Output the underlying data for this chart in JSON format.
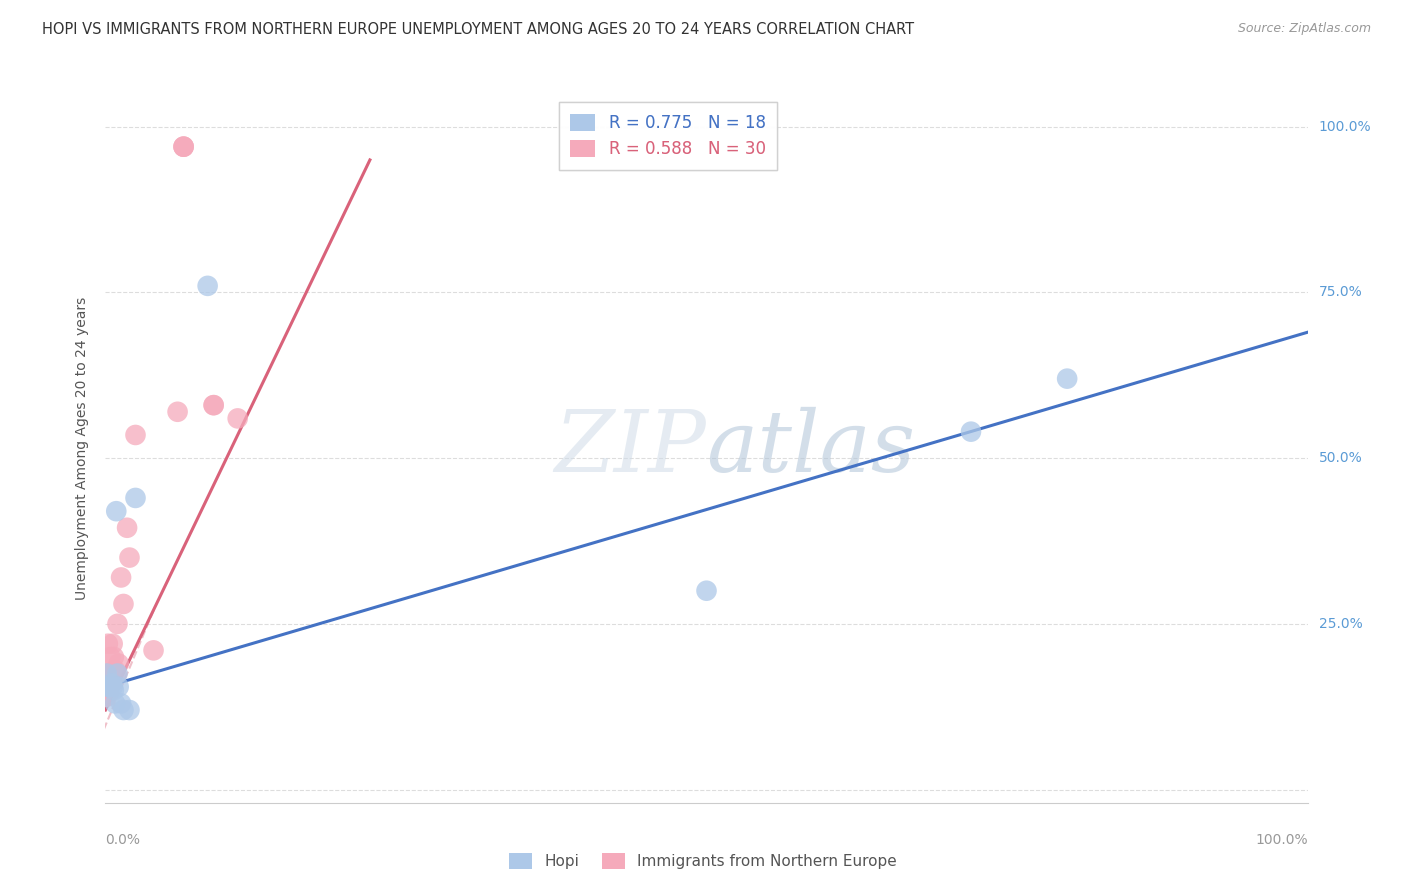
{
  "title": "HOPI VS IMMIGRANTS FROM NORTHERN EUROPE UNEMPLOYMENT AMONG AGES 20 TO 24 YEARS CORRELATION CHART",
  "source": "Source: ZipAtlas.com",
  "ylabel": "Unemployment Among Ages 20 to 24 years",
  "hopi_R": 0.775,
  "hopi_N": 18,
  "imm_R": 0.588,
  "imm_N": 30,
  "hopi_scatter_color": "#adc8e8",
  "imm_scatter_color": "#f5aabb",
  "hopi_line_color": "#4472c4",
  "imm_line_color": "#d9627a",
  "watermark_zip": "ZIP",
  "watermark_atlas": "atlas",
  "hopi_x": [
    0.001,
    0.002,
    0.004,
    0.005,
    0.006,
    0.007,
    0.008,
    0.009,
    0.01,
    0.011,
    0.013,
    0.015,
    0.02,
    0.025,
    0.085,
    0.5,
    0.72,
    0.8
  ],
  "hopi_y": [
    0.175,
    0.155,
    0.155,
    0.16,
    0.155,
    0.15,
    0.13,
    0.42,
    0.175,
    0.155,
    0.13,
    0.12,
    0.12,
    0.44,
    0.76,
    0.3,
    0.54,
    0.62
  ],
  "imm_x": [
    0.0,
    0.0,
    0.0,
    0.001,
    0.001,
    0.002,
    0.003,
    0.004,
    0.004,
    0.005,
    0.005,
    0.006,
    0.007,
    0.008,
    0.009,
    0.01,
    0.011,
    0.013,
    0.015,
    0.018,
    0.02,
    0.025,
    0.04,
    0.06,
    0.065,
    0.065,
    0.065,
    0.09,
    0.09,
    0.11
  ],
  "imm_y": [
    0.14,
    0.145,
    0.155,
    0.14,
    0.175,
    0.22,
    0.15,
    0.2,
    0.175,
    0.16,
    0.175,
    0.22,
    0.2,
    0.18,
    0.175,
    0.25,
    0.19,
    0.32,
    0.28,
    0.395,
    0.35,
    0.535,
    0.21,
    0.57,
    0.97,
    0.97,
    0.97,
    0.58,
    0.58,
    0.56
  ],
  "hopi_trend_x0": 0.0,
  "hopi_trend_y0": 0.155,
  "hopi_trend_x1": 1.0,
  "hopi_trend_y1": 0.69,
  "imm_trend_solid_x0": 0.0,
  "imm_trend_solid_y0": 0.12,
  "imm_trend_solid_x1": 0.22,
  "imm_trend_solid_y1": 0.95,
  "imm_trend_dash_x0": -0.005,
  "imm_trend_dash_y0": 0.075,
  "imm_trend_dash_x1": 0.04,
  "imm_trend_dash_y1": 0.27,
  "background_color": "#ffffff",
  "grid_color": "#dddddd",
  "xlim_min": 0.0,
  "xlim_max": 1.0,
  "ylim_min": 0.0,
  "ylim_max": 1.05
}
